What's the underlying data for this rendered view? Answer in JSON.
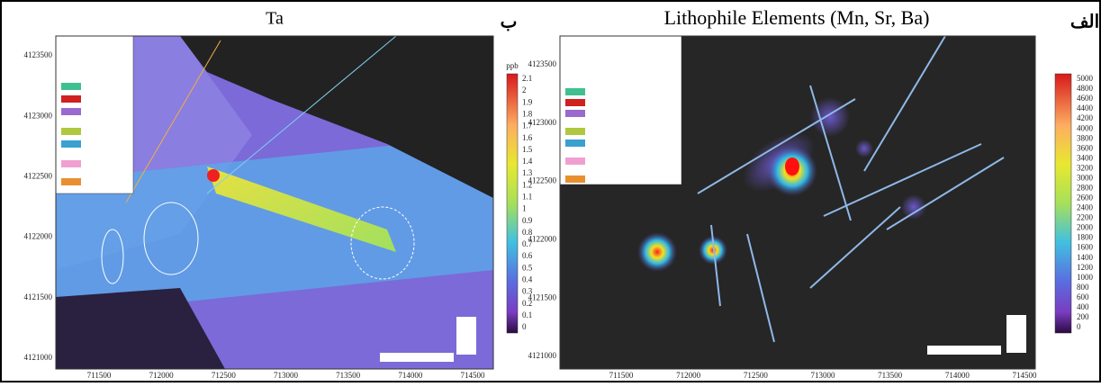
{
  "panels": [
    {
      "title": "Ta",
      "letter": "ب",
      "unit": "ppb",
      "colorbar_ticks": [
        2.1,
        2,
        1.9,
        1.8,
        1.7,
        1.6,
        1.5,
        1.4,
        1.3,
        1.2,
        1.1,
        1,
        0.9,
        0.8,
        0.7,
        0.6,
        0.5,
        0.4,
        0.3,
        0.2,
        0.1,
        0
      ],
      "x_ticks": [
        "711500",
        "712000",
        "712500",
        "713000",
        "713500",
        "714000",
        "714500"
      ],
      "y_ticks": [
        "4123500",
        "4123000",
        "4122500",
        "4122000",
        "4121500",
        "4121000"
      ]
    },
    {
      "title": "Lithophile Elements (Mn, Sr, Ba)",
      "letter": "الف",
      "colorbar_ticks": [
        5000,
        4800,
        4600,
        4400,
        4200,
        4000,
        3800,
        3600,
        3400,
        3200,
        3000,
        2800,
        2600,
        2400,
        2200,
        2000,
        1800,
        1600,
        1400,
        1200,
        1000,
        800,
        600,
        400,
        200,
        0
      ],
      "x_ticks": [
        "711500",
        "712000",
        "712500",
        "713000",
        "713500",
        "714000",
        "714500"
      ],
      "y_ticks": [
        "4123500",
        "4123000",
        "4122500",
        "4122000",
        "4121500",
        "4121000"
      ]
    }
  ]
}
